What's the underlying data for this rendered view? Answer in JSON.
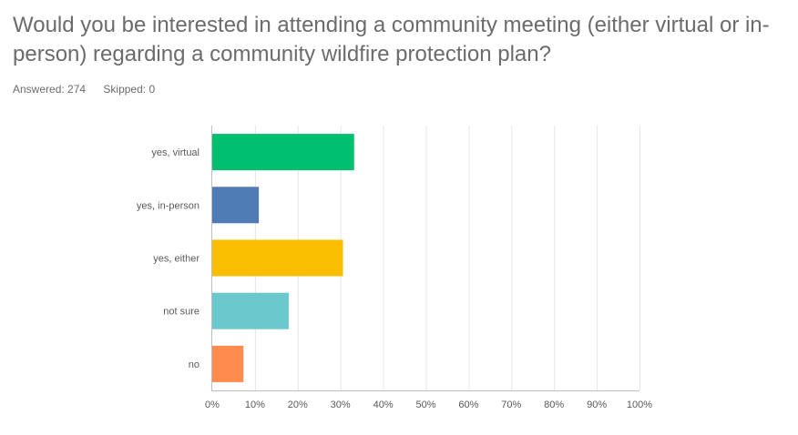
{
  "question": {
    "title": "Would you be interested in attending a community meeting (either virtual or in-person) regarding a community wildfire protection plan?"
  },
  "stats": {
    "answered": "Answered: 274",
    "skipped": "Skipped: 0"
  },
  "chart_data": {
    "type": "bar",
    "orientation": "horizontal",
    "categories": [
      "yes, virtual",
      "yes, in-person",
      "yes, either",
      "not sure",
      "no"
    ],
    "values": [
      33.2,
      10.9,
      30.6,
      17.9,
      7.3
    ],
    "colors": [
      "#00bf6f",
      "#507cb6",
      "#f9be00",
      "#6bc8cd",
      "#ff8b4f"
    ],
    "xlim": [
      0,
      100
    ],
    "xticks": [
      0,
      10,
      20,
      30,
      40,
      50,
      60,
      70,
      80,
      90,
      100
    ],
    "xtick_labels": [
      "0%",
      "10%",
      "20%",
      "30%",
      "40%",
      "50%",
      "60%",
      "70%",
      "80%",
      "90%",
      "100%"
    ],
    "grid": true,
    "title": "",
    "xlabel": "",
    "ylabel": ""
  }
}
